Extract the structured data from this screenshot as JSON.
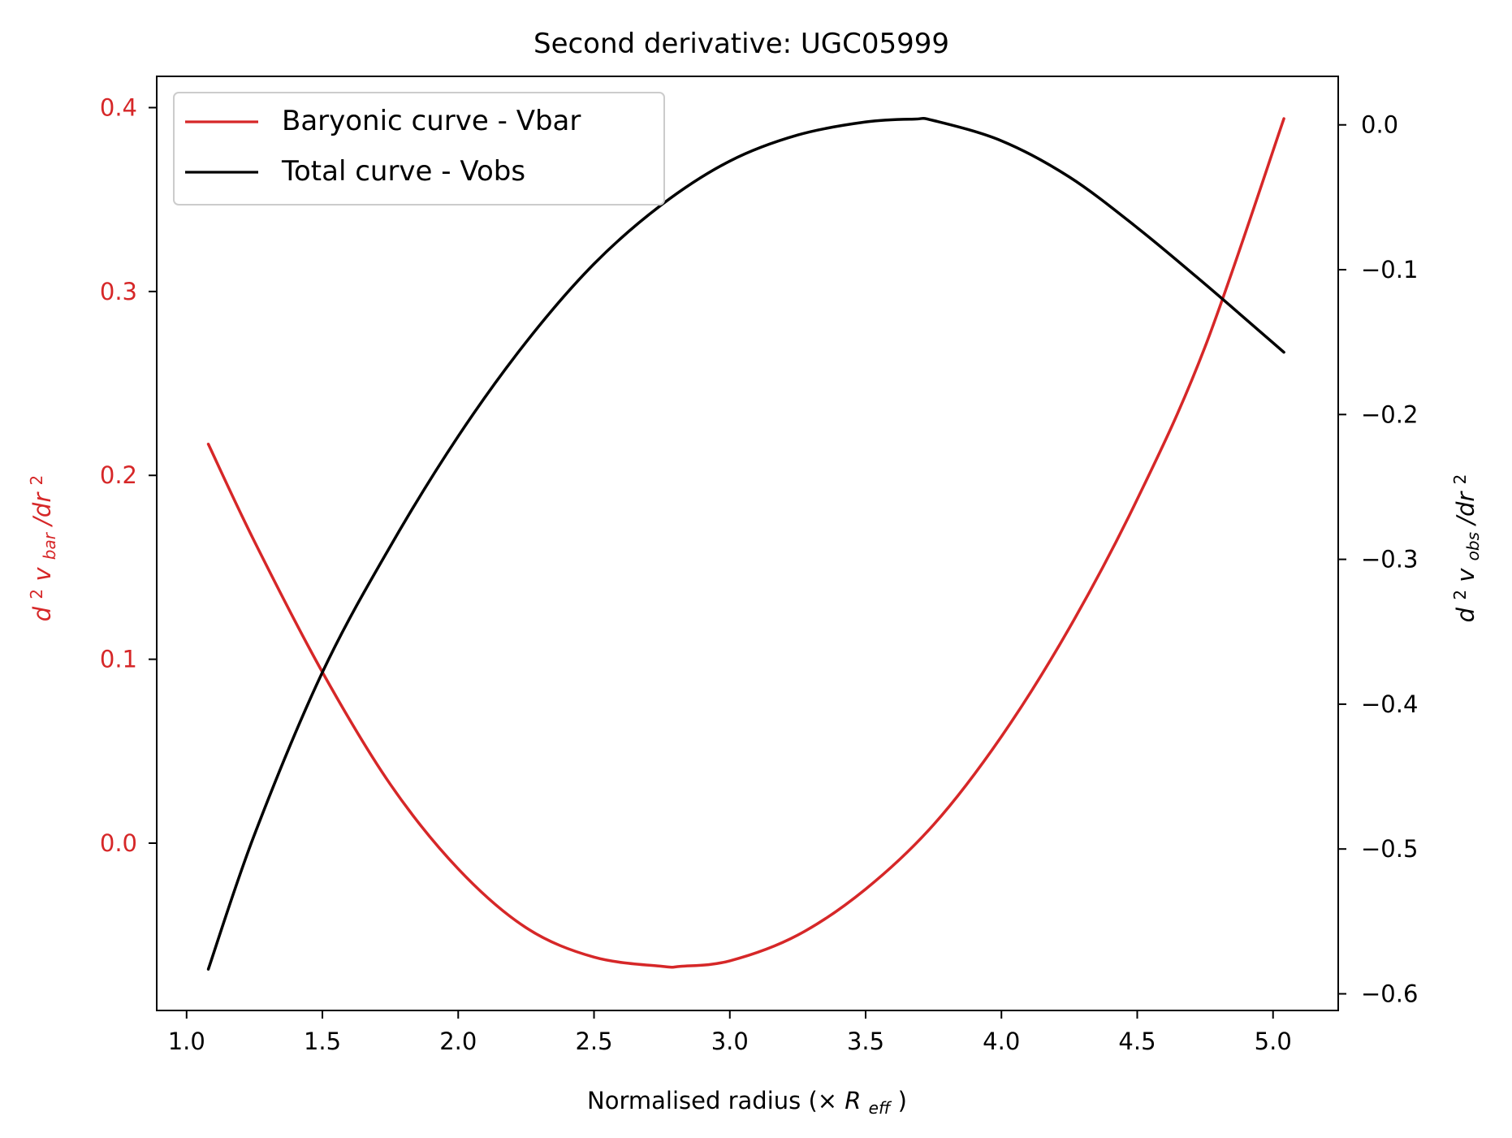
{
  "chart_data": {
    "type": "line",
    "title": "Second derivative: UGC05999",
    "xlabel": {
      "prefix": "Normalised radius (×",
      "math_main": "R",
      "math_sub": "eff",
      "suffix": ")"
    },
    "ylabel_left": {
      "main": "d",
      "sup1": "2",
      "v": "v",
      "sub": "bar",
      "mid": "/dr",
      "sup2": "2"
    },
    "ylabel_right": {
      "main": "d",
      "sup1": "2",
      "v": "v",
      "sub": "obs",
      "mid": "/dr",
      "sup2": "2"
    },
    "xlim": [
      0.89,
      5.24
    ],
    "ylim_left": [
      -0.091,
      0.417
    ],
    "ylim_right": [
      -0.6115,
      0.0335
    ],
    "x_ticks": [
      "1.0",
      "1.5",
      "2.0",
      "2.5",
      "3.0",
      "3.5",
      "4.0",
      "4.5",
      "5.0"
    ],
    "x_tick_values": [
      1.0,
      1.5,
      2.0,
      2.5,
      3.0,
      3.5,
      4.0,
      4.5,
      5.0
    ],
    "y_left_ticks": [
      "0.0",
      "0.1",
      "0.2",
      "0.3",
      "0.4"
    ],
    "y_left_tick_values": [
      0.0,
      0.1,
      0.2,
      0.3,
      0.4
    ],
    "y_right_ticks": [
      "0.0",
      "−0.1",
      "−0.2",
      "−0.3",
      "−0.4",
      "−0.5",
      "−0.6"
    ],
    "y_right_tick_values": [
      0.0,
      -0.1,
      -0.2,
      -0.3,
      -0.4,
      -0.5,
      -0.6
    ],
    "legend": {
      "placement": "top-left",
      "entries": [
        "Baryonic curve - Vbar",
        "Total curve - Vobs"
      ]
    },
    "grid": false,
    "colors": {
      "left_axis": "#d62728",
      "right_axis": "#000000",
      "baryonic": "#d62728",
      "total": "#000000"
    },
    "series": [
      {
        "name": "Baryonic curve - Vbar",
        "axis": "left",
        "color": "#d62728",
        "x": [
          1.08,
          1.25,
          1.5,
          1.75,
          2.0,
          2.25,
          2.5,
          2.75,
          2.82,
          3.0,
          3.25,
          3.5,
          3.75,
          4.0,
          4.25,
          4.5,
          4.75,
          5.04
        ],
        "y": [
          0.217,
          0.164,
          0.093,
          0.032,
          -0.014,
          -0.046,
          -0.062,
          -0.067,
          -0.067,
          -0.064,
          -0.05,
          -0.025,
          0.01,
          0.058,
          0.117,
          0.187,
          0.27,
          0.394
        ]
      },
      {
        "name": "Total curve - Vobs",
        "axis": "right",
        "color": "#000000",
        "x": [
          1.08,
          1.25,
          1.5,
          1.75,
          2.0,
          2.25,
          2.5,
          2.75,
          3.0,
          3.25,
          3.5,
          3.68,
          3.75,
          4.0,
          4.25,
          4.5,
          4.75,
          5.04
        ],
        "y": [
          -0.583,
          -0.49,
          -0.378,
          -0.291,
          -0.215,
          -0.15,
          -0.096,
          -0.055,
          -0.025,
          -0.007,
          0.002,
          0.004,
          0.003,
          -0.011,
          -0.036,
          -0.071,
          -0.11,
          -0.157
        ]
      }
    ]
  }
}
